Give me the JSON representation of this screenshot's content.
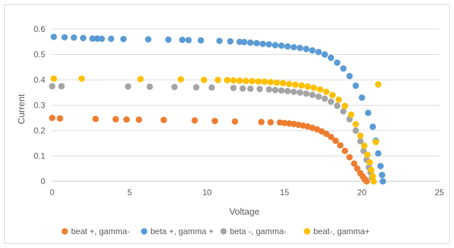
{
  "chart_data": {
    "type": "scatter",
    "title": "",
    "xlabel": "Voltage",
    "ylabel": "Current",
    "xlim": [
      0,
      25
    ],
    "ylim": [
      0,
      0.6
    ],
    "xticks": [
      0,
      5,
      10,
      15,
      20,
      25
    ],
    "yticks": [
      0,
      0.1,
      0.2,
      0.3,
      0.4,
      0.5,
      0.6
    ],
    "grid": "horizontal",
    "legend": "bottom",
    "series": [
      {
        "name": "beat +, gamma-",
        "color": "#ED7D31",
        "x": [
          0.0,
          0.5,
          2.8,
          4.1,
          4.8,
          5.6,
          7.2,
          9.2,
          10.5,
          11.8,
          13.5,
          14.1,
          14.7,
          15.0,
          15.3,
          15.6,
          15.9,
          16.2,
          16.5,
          16.8,
          17.1,
          17.4,
          17.7,
          18.0,
          18.3,
          18.6,
          18.9,
          19.2,
          19.5,
          19.7,
          19.9,
          20.05,
          20.15,
          20.25,
          20.3
        ],
        "y": [
          0.25,
          0.248,
          0.246,
          0.245,
          0.244,
          0.243,
          0.242,
          0.24,
          0.238,
          0.236,
          0.234,
          0.233,
          0.232,
          0.23,
          0.228,
          0.226,
          0.223,
          0.22,
          0.216,
          0.211,
          0.205,
          0.197,
          0.187,
          0.175,
          0.16,
          0.142,
          0.12,
          0.095,
          0.07,
          0.05,
          0.032,
          0.02,
          0.01,
          0.004,
          0.0
        ]
      },
      {
        "name": "beta +, gamma +",
        "color": "#5B9BD5",
        "x": [
          0.1,
          0.8,
          1.4,
          2.0,
          2.6,
          2.9,
          3.2,
          3.8,
          4.6,
          6.2,
          7.5,
          8.4,
          8.8,
          9.6,
          10.8,
          11.5,
          12.1,
          12.4,
          12.8,
          13.2,
          13.6,
          14.0,
          14.4,
          14.8,
          15.2,
          15.6,
          16.0,
          16.4,
          16.8,
          17.2,
          17.6,
          18.0,
          18.4,
          18.8,
          19.2,
          19.6,
          20.0,
          20.4,
          20.7,
          20.9,
          21.05,
          21.2,
          21.3,
          21.35
        ],
        "y": [
          0.57,
          0.568,
          0.567,
          0.565,
          0.563,
          0.563,
          0.562,
          0.562,
          0.561,
          0.56,
          0.559,
          0.558,
          0.557,
          0.556,
          0.554,
          0.552,
          0.55,
          0.549,
          0.547,
          0.545,
          0.542,
          0.54,
          0.537,
          0.535,
          0.532,
          0.529,
          0.526,
          0.522,
          0.516,
          0.51,
          0.5,
          0.487,
          0.468,
          0.445,
          0.415,
          0.377,
          0.33,
          0.27,
          0.215,
          0.16,
          0.11,
          0.06,
          0.025,
          0.0
        ]
      },
      {
        "name": "beta -, gamma-",
        "color": "#A5A5A5",
        "x": [
          0.0,
          0.6,
          4.9,
          6.3,
          7.9,
          9.3,
          10.3,
          11.7,
          12.3,
          12.8,
          13.4,
          14.0,
          14.4,
          14.8,
          15.2,
          15.6,
          16.0,
          16.4,
          16.8,
          17.2,
          17.6,
          18.0,
          18.4,
          18.8,
          19.2,
          19.6,
          19.9,
          20.1,
          20.3,
          20.45,
          20.55,
          20.65,
          20.75
        ],
        "y": [
          0.375,
          0.375,
          0.374,
          0.373,
          0.372,
          0.371,
          0.37,
          0.368,
          0.366,
          0.365,
          0.364,
          0.362,
          0.36,
          0.358,
          0.356,
          0.353,
          0.35,
          0.346,
          0.341,
          0.334,
          0.326,
          0.314,
          0.298,
          0.276,
          0.245,
          0.2,
          0.158,
          0.12,
          0.085,
          0.055,
          0.035,
          0.015,
          0.0
        ]
      },
      {
        "name": "beat-, gamma+",
        "color": "#FFC000",
        "x": [
          0.1,
          1.9,
          5.7,
          8.3,
          9.8,
          10.7,
          11.3,
          11.7,
          12.1,
          12.5,
          12.9,
          13.3,
          13.7,
          14.1,
          14.5,
          14.9,
          15.3,
          15.7,
          16.1,
          16.5,
          16.9,
          17.3,
          17.7,
          18.1,
          18.5,
          18.9,
          19.3,
          19.6,
          19.9,
          20.15,
          20.35,
          20.5,
          20.6,
          20.7,
          20.75,
          20.9,
          21.05
        ],
        "y": [
          0.405,
          0.405,
          0.403,
          0.402,
          0.4,
          0.4,
          0.399,
          0.398,
          0.397,
          0.396,
          0.395,
          0.394,
          0.393,
          0.391,
          0.389,
          0.387,
          0.384,
          0.381,
          0.378,
          0.374,
          0.369,
          0.362,
          0.353,
          0.34,
          0.322,
          0.297,
          0.263,
          0.225,
          0.18,
          0.14,
          0.105,
          0.075,
          0.045,
          0.02,
          0.0,
          0.155,
          0.382
        ]
      }
    ]
  }
}
